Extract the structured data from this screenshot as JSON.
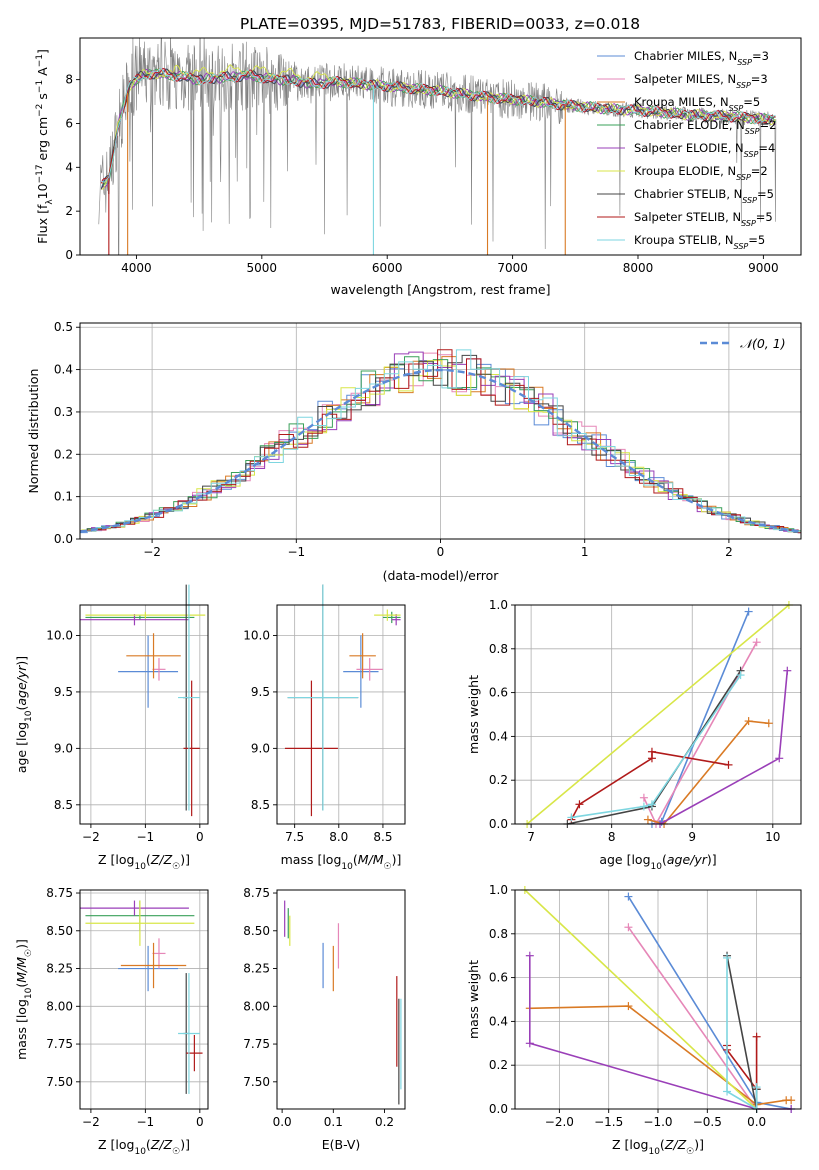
{
  "figure_title": "PLATE=0395, MJD=51783, FIBERID=0033, z=0.018",
  "chart_data": [
    {
      "id": "spectrum",
      "type": "line",
      "xlabel": "wavelength [Angstrom, rest frame]",
      "ylabel": "Flux [f_λ10^-17 erg cm^-2 s^-1 A^-1]",
      "xlim": [
        3550,
        9300
      ],
      "ylim": [
        0,
        9.9
      ],
      "xticks": [
        4000,
        5000,
        6000,
        7000,
        8000,
        9000
      ],
      "yticks": [
        0,
        2,
        4,
        6,
        8
      ],
      "grid": false,
      "legend_position": "top-right",
      "legend": [
        {
          "name": "Chabrier MILES, N_SSP=3",
          "color": "#5b8bd6"
        },
        {
          "name": "Salpeter MILES, N_SSP=3",
          "color": "#e687b8"
        },
        {
          "name": "Kroupa MILES, N_SSP=5",
          "color": "#d97a25"
        },
        {
          "name": "Chabrier ELODIE, N_SSP=2",
          "color": "#3aa05a"
        },
        {
          "name": "Salpeter ELODIE, N_SSP=4",
          "color": "#9a3fb8"
        },
        {
          "name": "Kroupa ELODIE, N_SSP=2",
          "color": "#d8e648"
        },
        {
          "name": "Chabrier STELIB, N_SSP=5",
          "color": "#444444"
        },
        {
          "name": "Salpeter STELIB, N_SSP=5",
          "color": "#b01a1a"
        },
        {
          "name": "Kroupa STELIB, N_SSP=5",
          "color": "#7ed6e0"
        }
      ],
      "data_color": "#808080",
      "continuum": {
        "x": [
          3700,
          3780,
          3850,
          3950,
          4050,
          4150,
          4300,
          4400,
          4500,
          4700,
          4900,
          5000,
          5100,
          5200,
          5400,
          5600,
          5800,
          6000,
          6200,
          6400,
          6600,
          6800,
          7000,
          7200,
          7400,
          7600,
          7800,
          8000,
          8200,
          8400,
          8600,
          8800,
          9000
        ],
        "y": [
          3.0,
          3.5,
          5.8,
          7.8,
          8.2,
          8.3,
          8.2,
          8.1,
          8.0,
          8.1,
          8.2,
          8.1,
          8.0,
          8.0,
          7.8,
          7.9,
          7.8,
          7.7,
          7.6,
          7.5,
          7.35,
          7.2,
          7.1,
          7.0,
          6.85,
          6.75,
          6.65,
          6.6,
          6.5,
          6.4,
          6.35,
          6.3,
          6.2
        ]
      },
      "dropouts": [
        {
          "x": 3780,
          "color": "#b01a1a"
        },
        {
          "x": 3930,
          "color": "#d97a25"
        },
        {
          "x": 5890,
          "color": "#7ed6e0"
        },
        {
          "x": 6800,
          "color": "#d97a25"
        },
        {
          "x": 7420,
          "color": "#d97a25"
        }
      ]
    },
    {
      "id": "residuals",
      "type": "line",
      "xlabel": "(data-model)/error",
      "ylabel": "Normed distribution",
      "xlim": [
        -2.5,
        2.5
      ],
      "ylim": [
        0,
        0.51
      ],
      "xticks": [
        -2,
        -1,
        0,
        1,
        2
      ],
      "yticks": [
        0.0,
        0.1,
        0.2,
        0.3,
        0.4,
        0.5
      ],
      "grid": true,
      "legend_position": "top-right",
      "legend": [
        {
          "name": "𝒩(0, 1)",
          "color": "#5b8bd6"
        }
      ],
      "gaussian": {
        "mean": 0,
        "sigma": 1
      },
      "bin_width": 0.1
    },
    {
      "id": "age-vs-Z",
      "type": "scatter",
      "xlabel": "Z [log10(Z/Z☉)]",
      "ylabel": "age [log10(age/yr)]",
      "xlim": [
        -2.2,
        0.15
      ],
      "ylim": [
        8.33,
        10.27
      ],
      "xticks": [
        -2,
        -1,
        0
      ],
      "yticks": [
        8.5,
        9.0,
        9.5,
        10.0
      ],
      "grid": true,
      "points": [
        {
          "x": -0.95,
          "y": 9.68,
          "xerr": 0.55,
          "yerr": 0.32,
          "color": "#5b8bd6"
        },
        {
          "x": -0.75,
          "y": 9.7,
          "xerr": 0.12,
          "yerr": 0.1,
          "color": "#e687b8"
        },
        {
          "x": -0.85,
          "y": 9.82,
          "xerr": 0.5,
          "yerr": 0.2,
          "color": "#d97a25"
        },
        {
          "x": -1.1,
          "y": 10.16,
          "xerr": 1.0,
          "yerr": 0.02,
          "color": "#3aa05a"
        },
        {
          "x": -1.2,
          "y": 10.14,
          "xerr": 1.0,
          "yerr": 0.05,
          "color": "#9a3fb8"
        },
        {
          "x": -1.0,
          "y": 10.18,
          "xerr": 1.1,
          "yerr": 0.03,
          "color": "#d8e648"
        },
        {
          "x": -0.25,
          "y": 9.45,
          "xerr": 0.06,
          "yerr": 1.0,
          "color": "#444444"
        },
        {
          "x": -0.15,
          "y": 9.0,
          "xerr": 0.15,
          "yerr": 0.6,
          "color": "#b01a1a"
        },
        {
          "x": -0.2,
          "y": 9.45,
          "xerr": 0.2,
          "yerr": 1.0,
          "color": "#7ed6e0"
        }
      ]
    },
    {
      "id": "age-vs-mass",
      "type": "scatter",
      "xlabel": "mass [log10(M/M☉)]",
      "ylabel": "",
      "xlim": [
        7.3,
        8.75
      ],
      "ylim": [
        8.33,
        10.27
      ],
      "xticks": [
        7.5,
        8.0,
        8.5
      ],
      "yticks": [
        8.5,
        9.0,
        9.5,
        10.0
      ],
      "grid": true,
      "points": [
        {
          "x": 8.25,
          "y": 9.68,
          "xerr": 0.2,
          "yerr": 0.32,
          "color": "#5b8bd6"
        },
        {
          "x": 8.35,
          "y": 9.7,
          "xerr": 0.15,
          "yerr": 0.1,
          "color": "#e687b8"
        },
        {
          "x": 8.27,
          "y": 9.82,
          "xerr": 0.15,
          "yerr": 0.2,
          "color": "#d97a25"
        },
        {
          "x": 8.6,
          "y": 10.16,
          "xerr": 0.1,
          "yerr": 0.05,
          "color": "#3aa05a"
        },
        {
          "x": 8.65,
          "y": 10.14,
          "xerr": 0.05,
          "yerr": 0.05,
          "color": "#9a3fb8"
        },
        {
          "x": 8.55,
          "y": 10.18,
          "xerr": 0.15,
          "yerr": 0.05,
          "color": "#d8e648"
        },
        {
          "x": 7.82,
          "y": 9.45,
          "xerr": 0.4,
          "yerr": 1.0,
          "color": "#444444"
        },
        {
          "x": 7.69,
          "y": 9.0,
          "xerr": 0.3,
          "yerr": 0.6,
          "color": "#b01a1a"
        },
        {
          "x": 7.82,
          "y": 9.45,
          "xerr": 0.4,
          "yerr": 1.0,
          "color": "#7ed6e0"
        }
      ]
    },
    {
      "id": "massweight-vs-age",
      "type": "line",
      "xlabel": "age [log10(age/yr)]",
      "ylabel": "mass weight",
      "xlim": [
        6.8,
        10.35
      ],
      "ylim": [
        0,
        1.0
      ],
      "xticks": [
        7,
        8,
        9,
        10
      ],
      "yticks": [
        0.0,
        0.2,
        0.4,
        0.6,
        0.8,
        1.0
      ],
      "grid": true,
      "series": [
        {
          "color": "#5b8bd6",
          "x": [
            8.5,
            8.62,
            9.7
          ],
          "y": [
            0.0,
            0.01,
            0.97
          ]
        },
        {
          "color": "#e687b8",
          "x": [
            8.4,
            8.55,
            9.8
          ],
          "y": [
            0.12,
            0.0,
            0.83
          ]
        },
        {
          "color": "#d97a25",
          "x": [
            8.45,
            8.65,
            9.7,
            9.95
          ],
          "y": [
            0.02,
            0.0,
            0.47,
            0.46
          ]
        },
        {
          "color": "#d8e648",
          "x": [
            6.95,
            10.2
          ],
          "y": [
            0.0,
            1.0
          ]
        },
        {
          "color": "#9a3fb8",
          "x": [
            8.6,
            10.08,
            10.18
          ],
          "y": [
            0.0,
            0.3,
            0.7
          ]
        },
        {
          "color": "#b01a1a",
          "x": [
            7.5,
            7.6,
            8.5,
            8.5,
            9.45
          ],
          "y": [
            0.02,
            0.09,
            0.3,
            0.33,
            0.27
          ]
        },
        {
          "color": "#444444",
          "x": [
            7.45,
            8.5,
            9.6
          ],
          "y": [
            0.0,
            0.08,
            0.7
          ]
        },
        {
          "color": "#7ed6e0",
          "x": [
            7.5,
            8.4,
            8.5,
            9.6
          ],
          "y": [
            0.03,
            0.08,
            0.09,
            0.68
          ]
        }
      ]
    },
    {
      "id": "mass-vs-Z",
      "type": "scatter",
      "xlabel": "Z [log10(Z/Z☉)]",
      "ylabel": "mass [log10(M/M☉)]",
      "xlim": [
        -2.2,
        0.15
      ],
      "ylim": [
        7.32,
        8.77
      ],
      "xticks": [
        -2,
        -1,
        0
      ],
      "yticks": [
        7.5,
        7.75,
        8.0,
        8.25,
        8.5,
        8.75
      ],
      "grid": true,
      "points": [
        {
          "x": -0.95,
          "y": 8.25,
          "xerr": 0.55,
          "yerr": 0.15,
          "color": "#5b8bd6"
        },
        {
          "x": -0.75,
          "y": 8.35,
          "xerr": 0.12,
          "yerr": 0.1,
          "color": "#e687b8"
        },
        {
          "x": -0.85,
          "y": 8.27,
          "xerr": 0.6,
          "yerr": 0.15,
          "color": "#d97a25"
        },
        {
          "x": -1.1,
          "y": 8.6,
          "xerr": 1.0,
          "yerr": 0.1,
          "color": "#3aa05a"
        },
        {
          "x": -1.2,
          "y": 8.65,
          "xerr": 1.0,
          "yerr": 0.05,
          "color": "#9a3fb8"
        },
        {
          "x": -1.1,
          "y": 8.55,
          "xerr": 1.0,
          "yerr": 0.15,
          "color": "#d8e648"
        },
        {
          "x": -0.25,
          "y": 7.82,
          "xerr": 0.05,
          "yerr": 0.4,
          "color": "#444444"
        },
        {
          "x": -0.1,
          "y": 7.69,
          "xerr": 0.15,
          "yerr": 0.12,
          "color": "#b01a1a"
        },
        {
          "x": -0.2,
          "y": 7.82,
          "xerr": 0.2,
          "yerr": 0.4,
          "color": "#7ed6e0"
        }
      ]
    },
    {
      "id": "mass-vs-ebv",
      "type": "scatter",
      "xlabel": "E(B-V)",
      "ylabel": "",
      "xlim": [
        -0.01,
        0.24
      ],
      "ylim": [
        7.32,
        8.77
      ],
      "xticks": [
        0.0,
        0.1,
        0.2
      ],
      "yticks": [
        7.5,
        7.75,
        8.0,
        8.25,
        8.5,
        8.75
      ],
      "grid": false,
      "points": [
        {
          "x": 0.08,
          "y": 8.27,
          "xerr": 0,
          "yerr": 0.15,
          "color": "#5b8bd6"
        },
        {
          "x": 0.11,
          "y": 8.4,
          "xerr": 0,
          "yerr": 0.15,
          "color": "#e687b8"
        },
        {
          "x": 0.1,
          "y": 8.25,
          "xerr": 0,
          "yerr": 0.15,
          "color": "#d97a25"
        },
        {
          "x": 0.012,
          "y": 8.55,
          "xerr": 0,
          "yerr": 0.1,
          "color": "#3aa05a"
        },
        {
          "x": 0.005,
          "y": 8.58,
          "xerr": 0,
          "yerr": 0.12,
          "color": "#9a3fb8"
        },
        {
          "x": 0.015,
          "y": 8.5,
          "xerr": 0,
          "yerr": 0.1,
          "color": "#d8e648"
        },
        {
          "x": 0.228,
          "y": 7.7,
          "xerr": 0,
          "yerr": 0.35,
          "color": "#444444"
        },
        {
          "x": 0.224,
          "y": 7.9,
          "xerr": 0,
          "yerr": 0.3,
          "color": "#b01a1a"
        },
        {
          "x": 0.232,
          "y": 7.75,
          "xerr": 0,
          "yerr": 0.3,
          "color": "#7ed6e0"
        }
      ]
    },
    {
      "id": "massweight-vs-Z",
      "type": "line",
      "xlabel": "Z [log10(Z/Z☉)]",
      "ylabel": "mass weight",
      "xlim": [
        -2.45,
        0.45
      ],
      "ylim": [
        0,
        1.0
      ],
      "xticks": [
        -2.0,
        -1.5,
        -1.0,
        -0.5,
        0.0
      ],
      "yticks": [
        0.0,
        0.2,
        0.4,
        0.6,
        0.8,
        1.0
      ],
      "grid": true,
      "series": [
        {
          "color": "#5b8bd6",
          "x": [
            -1.3,
            0.0,
            0.35
          ],
          "y": [
            0.97,
            0.03,
            0.0
          ]
        },
        {
          "color": "#e687b8",
          "x": [
            -1.3,
            0.0
          ],
          "y": [
            0.83,
            0.0
          ]
        },
        {
          "color": "#d97a25",
          "x": [
            -2.3,
            -1.3,
            0.0,
            0.3,
            0.35
          ],
          "y": [
            0.46,
            0.47,
            0.02,
            0.04,
            0.04
          ]
        },
        {
          "color": "#d8e648",
          "x": [
            -2.35,
            0.0
          ],
          "y": [
            1.0,
            0.0
          ]
        },
        {
          "color": "#9a3fb8",
          "x": [
            -2.3,
            -2.3,
            0.0,
            0.35
          ],
          "y": [
            0.7,
            0.3,
            0.0,
            0.0
          ]
        },
        {
          "color": "#b01a1a",
          "x": [
            -0.3,
            -0.3,
            0.0,
            0.0
          ],
          "y": [
            0.29,
            0.27,
            0.09,
            0.33
          ]
        },
        {
          "color": "#444444",
          "x": [
            -0.3,
            0.0,
            0.0
          ],
          "y": [
            0.7,
            0.0,
            0.09
          ]
        },
        {
          "color": "#7ed6e0",
          "x": [
            -0.3,
            -0.3,
            0.0,
            0.0
          ],
          "y": [
            0.69,
            0.08,
            0.0,
            0.1
          ]
        }
      ]
    }
  ]
}
